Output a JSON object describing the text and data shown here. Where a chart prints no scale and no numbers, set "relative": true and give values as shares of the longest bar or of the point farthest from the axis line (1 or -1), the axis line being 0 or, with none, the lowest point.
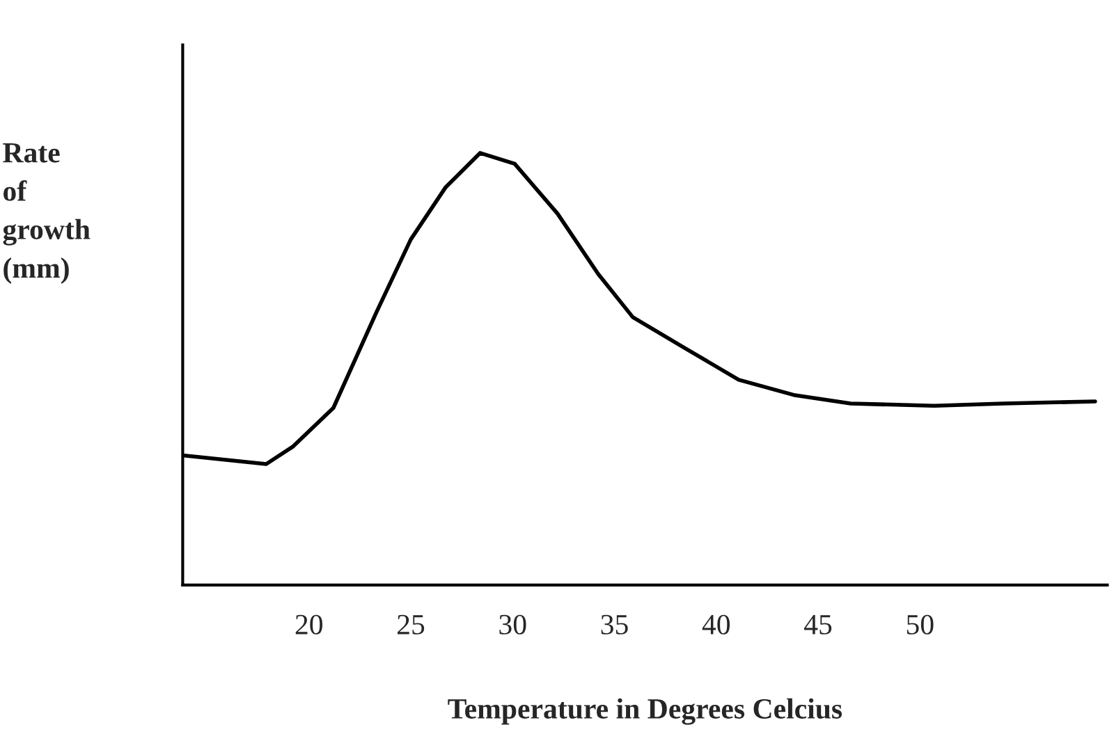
{
  "chart_data": {
    "type": "line",
    "relative": true,
    "xlabel": "Temperature in Degrees Celcius",
    "ylabel": "Rate\nof\ngrowth\n(mm)",
    "xlim": [
      13.8,
      59.2
    ],
    "xticks": [
      20,
      25,
      30,
      35,
      40,
      45,
      50
    ],
    "grid": false,
    "legend": false,
    "marker": "none",
    "line_style": "solid",
    "series": [
      {
        "color": "#000000",
        "x": [
          13.8,
          17.9,
          19.2,
          21.2,
          23.3,
          25,
          26.7,
          28.4,
          30.1,
          32.2,
          34.2,
          35.9,
          38.4,
          41.1,
          43.8,
          46.6,
          50.7,
          54.1,
          58.6
        ],
        "values": [
          0.3,
          0.28,
          0.32,
          0.41,
          0.63,
          0.8,
          0.92,
          1.0,
          0.975,
          0.86,
          0.72,
          0.62,
          0.55,
          0.475,
          0.44,
          0.42,
          0.415,
          0.42,
          0.425
        ]
      }
    ]
  }
}
